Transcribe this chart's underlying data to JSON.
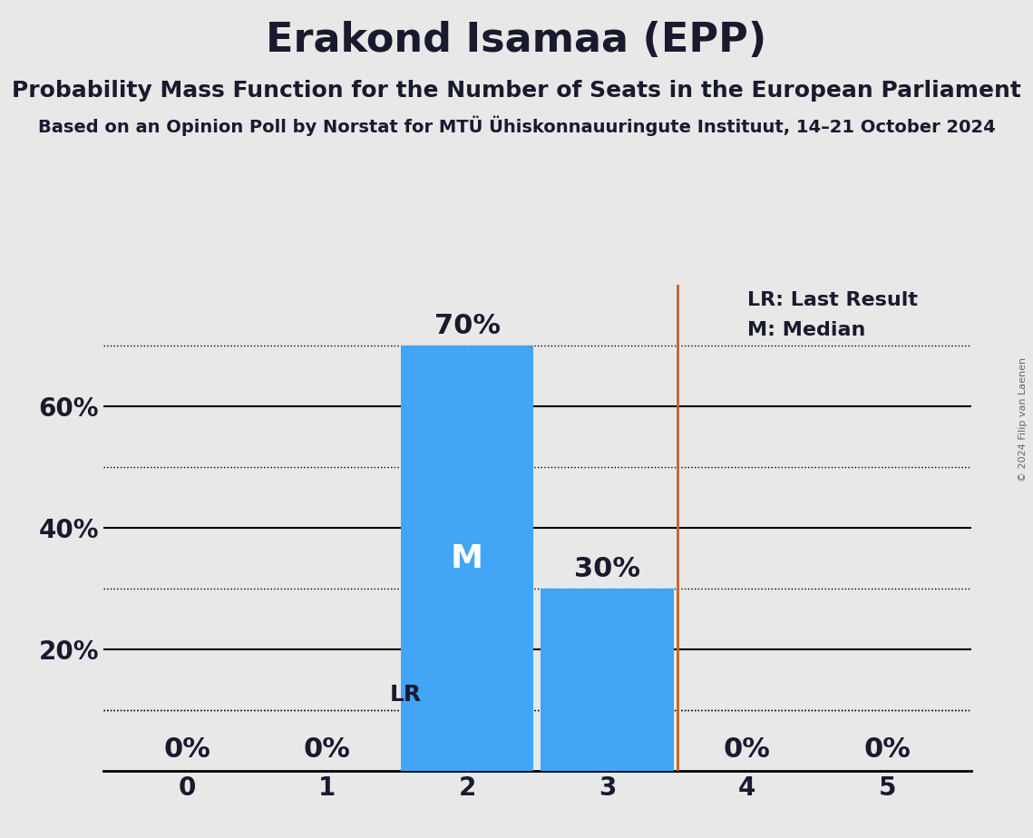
{
  "title": "Erakond Isamaa (EPP)",
  "subtitle1": "Probability Mass Function for the Number of Seats in the European Parliament",
  "subtitle2": "Based on an Opinion Poll by Norstat for MTÜ Ühiskonnauuringute Instituut, 14–21 October 2024",
  "copyright": "© 2024 Filip van Laenen",
  "categories": [
    0,
    1,
    2,
    3,
    4,
    5
  ],
  "values": [
    0.0,
    0.0,
    0.7,
    0.3,
    0.0,
    0.0
  ],
  "bar_color": "#42a5f5",
  "bar_labels": [
    "0%",
    "0%",
    "70%",
    "30%",
    "0%",
    "0%"
  ],
  "median_seat": 2,
  "median_label": "M",
  "lr_seat": 3.5,
  "lr_label": "LR",
  "lr_value": 0.1,
  "lr_color": "#c0632a",
  "ylim": [
    0,
    0.8
  ],
  "ytick_vals": [
    0.2,
    0.4,
    0.6
  ],
  "ytick_labels": [
    "20%",
    "40%",
    "60%"
  ],
  "solid_yticks": [
    0.2,
    0.4,
    0.6
  ],
  "dotted_yticks": [
    0.1,
    0.3,
    0.5,
    0.7
  ],
  "background_color": "#e8e8e8",
  "legend_lr": "LR: Last Result",
  "legend_m": "M: Median",
  "title_fontsize": 32,
  "subtitle1_fontsize": 18,
  "subtitle2_fontsize": 14,
  "ytick_fontsize": 20,
  "xtick_fontsize": 20,
  "bar_label_fontsize": 22,
  "median_label_fontsize": 26,
  "lr_label_fontsize": 18,
  "legend_fontsize": 16
}
